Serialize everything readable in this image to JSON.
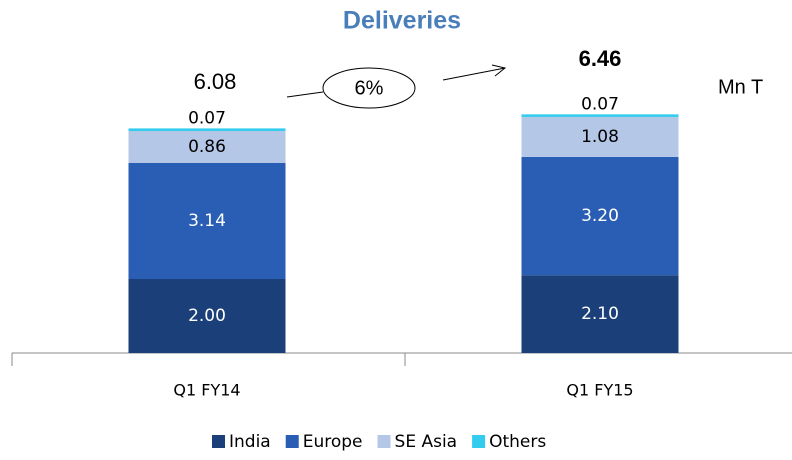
{
  "chart_data": {
    "type": "stacked_bar",
    "title": "Deliveries",
    "categories": [
      "Q1 FY14",
      "Q1 FY15"
    ],
    "series": [
      {
        "name": "India",
        "color": "#1b3f78",
        "values": [
          2.0,
          2.1
        ],
        "value_labels": [
          "2.00",
          "2.10"
        ]
      },
      {
        "name": "Europe",
        "color": "#2a5eb4",
        "values": [
          3.14,
          3.2
        ],
        "value_labels": [
          "3.14",
          "3.20"
        ]
      },
      {
        "name": "SE Asia",
        "color": "#b4c7e7",
        "values": [
          0.86,
          1.08
        ],
        "value_labels": [
          "0.86",
          "1.08"
        ]
      },
      {
        "name": "Others",
        "color": "#33ccee",
        "values": [
          0.07,
          0.07
        ],
        "value_labels": [
          "0.07",
          "0.07"
        ]
      }
    ],
    "totals": [
      6.08,
      6.46
    ],
    "growth_label": "6%",
    "unit_label": "Mn T",
    "legend": "bottom"
  }
}
